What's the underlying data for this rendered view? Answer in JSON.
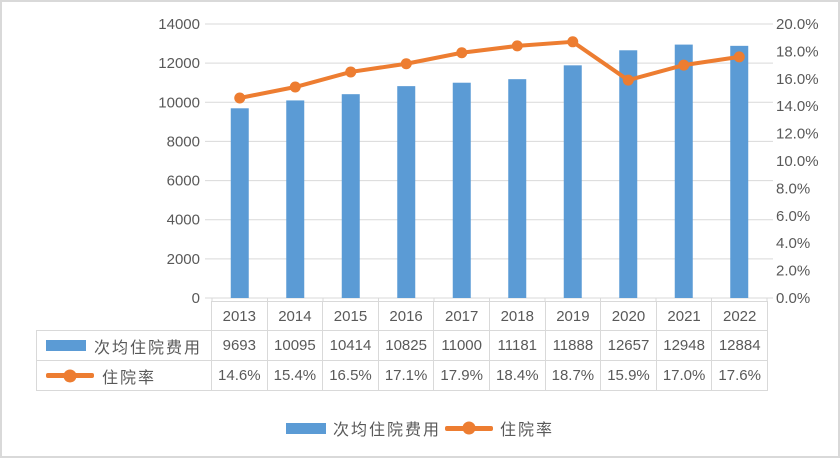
{
  "chart_data": {
    "type": "combo-bar-line",
    "title": "",
    "categories": [
      "2013",
      "2014",
      "2015",
      "2016",
      "2017",
      "2018",
      "2019",
      "2020",
      "2021",
      "2022"
    ],
    "series": [
      {
        "name": "次均住院费用",
        "type": "bar",
        "axis": "left",
        "values": [
          9693,
          10095,
          10414,
          10825,
          11000,
          11181,
          11888,
          12657,
          12948,
          12884
        ]
      },
      {
        "name": "住院率",
        "type": "line",
        "axis": "right",
        "values": [
          14.6,
          15.4,
          16.5,
          17.1,
          17.9,
          18.4,
          18.7,
          15.9,
          17.0,
          17.6
        ],
        "labels": [
          "14.6%",
          "15.4%",
          "16.5%",
          "17.1%",
          "17.9%",
          "18.4%",
          "18.7%",
          "15.9%",
          "17.0%",
          "17.6%"
        ]
      }
    ],
    "left_axis": {
      "min": 0,
      "max": 14000,
      "step": 2000,
      "tick_labels": [
        "14000",
        "12000",
        "10000",
        "8000",
        "6000",
        "4000",
        "2000",
        "0"
      ]
    },
    "right_axis": {
      "min": 0,
      "max": 20,
      "step": 2,
      "tick_labels": [
        "20.0%",
        "18.0%",
        "16.0%",
        "14.0%",
        "12.0%",
        "10.0%",
        "8.0%",
        "6.0%",
        "4.0%",
        "2.0%",
        "0.0%"
      ]
    },
    "grid": true,
    "legend_position": "bottom"
  },
  "legend": {
    "bar_label": "次均住院费用",
    "line_label": "住院率"
  },
  "table": {
    "year_header": [
      "2013",
      "2014",
      "2015",
      "2016",
      "2017",
      "2018",
      "2019",
      "2020",
      "2021",
      "2022"
    ],
    "rows": [
      {
        "label": "次均住院费用",
        "key": "bar",
        "values": [
          "9693",
          "10095",
          "10414",
          "10825",
          "11000",
          "11181",
          "11888",
          "12657",
          "12948",
          "12884"
        ]
      },
      {
        "label": "住院率",
        "key": "line",
        "values": [
          "14.6%",
          "15.4%",
          "16.5%",
          "17.1%",
          "17.9%",
          "18.4%",
          "18.7%",
          "15.9%",
          "17.0%",
          "17.6%"
        ]
      }
    ]
  },
  "colors": {
    "bar": "#5B9BD5",
    "line": "#ED7D31",
    "grid": "#D9D9D9",
    "axis_text": "#595959",
    "table_border": "#D9D9D9",
    "frame_border": "#D9D9D9"
  }
}
